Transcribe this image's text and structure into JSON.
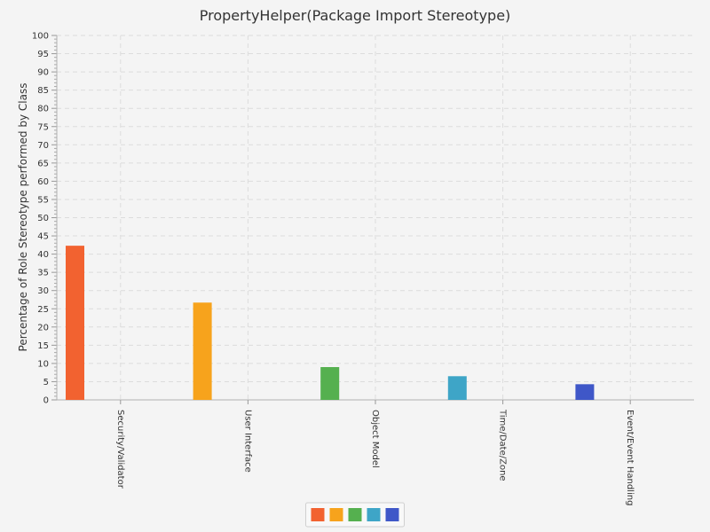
{
  "chart_data": {
    "type": "bar",
    "title": "PropertyHelper(Package Import Stereotype)",
    "xlabel": "",
    "ylabel": "Percentage of Role Stereotype performed by Class",
    "ylim": [
      0,
      100
    ],
    "ytick_step": 5,
    "grid": true,
    "legend_position": "bottom",
    "categories": [
      "Security/Validator",
      "User Interface",
      "Object Model",
      "Time/Date/Zone",
      "Event/Event Handling"
    ],
    "values": [
      42.3,
      26.7,
      9.0,
      6.5,
      4.3
    ],
    "colors": [
      "#f26230",
      "#f7a31c",
      "#55b04f",
      "#3ea5c7",
      "#3f57c8"
    ]
  }
}
